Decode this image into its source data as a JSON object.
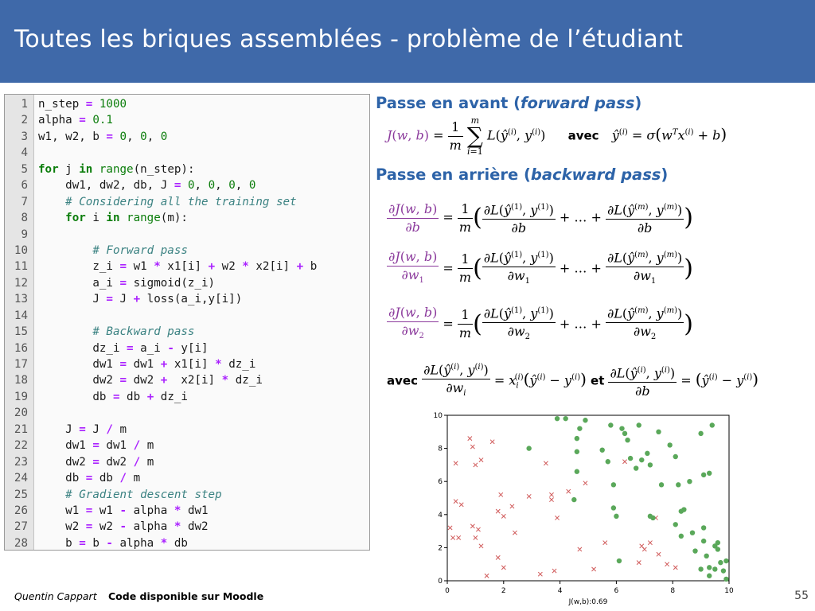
{
  "title": "Toutes les briques assemblées - problème de l’étudiant",
  "code": [
    {
      "n": "1",
      "html": "n_step <span class='op'>=</span> <span class='num'>1000</span>"
    },
    {
      "n": "2",
      "html": "alpha <span class='op'>=</span> <span class='num'>0.1</span>"
    },
    {
      "n": "3",
      "html": "w1, w2, b <span class='op'>=</span> <span class='num'>0</span>, <span class='num'>0</span>, <span class='num'>0</span>"
    },
    {
      "n": "4",
      "html": ""
    },
    {
      "n": "5",
      "html": "<span class='kw'>for</span> j <span class='kw'>in</span> <span class='bi'>range</span>(n_step):"
    },
    {
      "n": "6",
      "html": "    dw1, dw2, db, J <span class='op'>=</span> <span class='num'>0</span>, <span class='num'>0</span>, <span class='num'>0</span>, <span class='num'>0</span>"
    },
    {
      "n": "7",
      "html": "    <span class='cm'># Considering all the training set</span>"
    },
    {
      "n": "8",
      "html": "    <span class='kw'>for</span> i <span class='kw'>in</span> <span class='bi'>range</span>(m):"
    },
    {
      "n": "9",
      "html": ""
    },
    {
      "n": "10",
      "html": "        <span class='cm'># Forward pass</span>"
    },
    {
      "n": "11",
      "html": "        z_i <span class='op'>=</span> w1 <span class='op'>*</span> x1[i] <span class='op'>+</span> w2 <span class='op'>*</span> x2[i] <span class='op'>+</span> b"
    },
    {
      "n": "12",
      "html": "        a_i <span class='op'>=</span> sigmoid(z_i)"
    },
    {
      "n": "13",
      "html": "        J <span class='op'>=</span> J <span class='op'>+</span> loss(a_i,y[i])"
    },
    {
      "n": "14",
      "html": ""
    },
    {
      "n": "15",
      "html": "        <span class='cm'># Backward pass</span>"
    },
    {
      "n": "16",
      "html": "        dz_i <span class='op'>=</span> a_i <span class='op'>-</span> y[i]"
    },
    {
      "n": "17",
      "html": "        dw1 <span class='op'>=</span> dw1 <span class='op'>+</span> x1[i] <span class='op'>*</span> dz_i"
    },
    {
      "n": "18",
      "html": "        dw2 <span class='op'>=</span> dw2 <span class='op'>+</span>  x2[i] <span class='op'>*</span> dz_i"
    },
    {
      "n": "19",
      "html": "        db <span class='op'>=</span> db <span class='op'>+</span> dz_i"
    },
    {
      "n": "20",
      "html": ""
    },
    {
      "n": "21",
      "html": "    J <span class='op'>=</span> J <span class='op'>/</span> m"
    },
    {
      "n": "22",
      "html": "    dw1 <span class='op'>=</span> dw1 <span class='op'>/</span> m"
    },
    {
      "n": "23",
      "html": "    dw2 <span class='op'>=</span> dw2 <span class='op'>/</span> m"
    },
    {
      "n": "24",
      "html": "    db <span class='op'>=</span> db <span class='op'>/</span> m"
    },
    {
      "n": "25",
      "html": "    <span class='cm'># Gradient descent step</span>"
    },
    {
      "n": "26",
      "html": "    w1 <span class='op'>=</span> w1 <span class='op'>-</span> alpha <span class='op'>*</span> dw1"
    },
    {
      "n": "27",
      "html": "    w2 <span class='op'>=</span> w2 <span class='op'>-</span> alpha <span class='op'>*</span> dw2"
    },
    {
      "n": "28",
      "html": "    b <span class='op'>=</span> b <span class='op'>-</span> alpha <span class='op'>*</span> db"
    }
  ],
  "forward": {
    "title_plain": "Passe en avant (",
    "title_em": "forward pass",
    "title_close": ")",
    "avec": "avec"
  },
  "backward": {
    "title_plain": "Passe en arrière (",
    "title_em": "backward pass",
    "title_close": ")"
  },
  "avec_label": "avec",
  "et_label": "et",
  "chart_data": {
    "type": "scatter",
    "xlim": [
      0,
      10
    ],
    "ylim": [
      0,
      10
    ],
    "xticks": [
      "0",
      "2",
      "4",
      "6",
      "8",
      "10"
    ],
    "yticks": [
      "0",
      "2",
      "4",
      "6",
      "8",
      "10"
    ],
    "xlabel": "J(w,b):0.69",
    "series": [
      {
        "marker": "x",
        "color": "#d05a5a",
        "points": [
          [
            0.1,
            3.2
          ],
          [
            0.2,
            2.6
          ],
          [
            0.3,
            7.1
          ],
          [
            0.3,
            4.8
          ],
          [
            0.4,
            2.6
          ],
          [
            0.5,
            4.6
          ],
          [
            0.8,
            8.6
          ],
          [
            0.9,
            8.1
          ],
          [
            0.9,
            3.3
          ],
          [
            1.0,
            2.6
          ],
          [
            1.0,
            7.0
          ],
          [
            1.1,
            3.1
          ],
          [
            1.2,
            7.3
          ],
          [
            1.2,
            2.1
          ],
          [
            1.4,
            0.3
          ],
          [
            1.6,
            8.4
          ],
          [
            1.8,
            4.2
          ],
          [
            1.8,
            1.4
          ],
          [
            1.9,
            5.2
          ],
          [
            2.0,
            3.9
          ],
          [
            2.0,
            0.8
          ],
          [
            2.3,
            4.5
          ],
          [
            2.4,
            2.9
          ],
          [
            2.9,
            5.1
          ],
          [
            3.3,
            0.4
          ],
          [
            3.5,
            7.1
          ],
          [
            3.7,
            5.2
          ],
          [
            3.7,
            4.9
          ],
          [
            3.8,
            0.6
          ],
          [
            3.9,
            3.8
          ],
          [
            4.3,
            5.4
          ],
          [
            4.7,
            1.9
          ],
          [
            4.9,
            5.9
          ],
          [
            5.2,
            0.7
          ],
          [
            5.6,
            2.3
          ],
          [
            6.3,
            7.2
          ],
          [
            6.8,
            1.1
          ],
          [
            6.9,
            2.1
          ],
          [
            7.0,
            1.9
          ],
          [
            7.2,
            2.3
          ],
          [
            7.4,
            3.8
          ],
          [
            7.5,
            1.6
          ],
          [
            7.8,
            1.0
          ],
          [
            8.1,
            0.8
          ]
        ]
      },
      {
        "marker": "o",
        "color": "#5aa85a",
        "points": [
          [
            2.9,
            8.0
          ],
          [
            3.9,
            9.8
          ],
          [
            4.2,
            9.8
          ],
          [
            4.6,
            8.6
          ],
          [
            4.6,
            7.8
          ],
          [
            4.7,
            9.2
          ],
          [
            4.9,
            9.7
          ],
          [
            4.6,
            6.6
          ],
          [
            4.5,
            4.9
          ],
          [
            5.5,
            7.9
          ],
          [
            5.7,
            7.2
          ],
          [
            5.8,
            9.4
          ],
          [
            5.9,
            5.8
          ],
          [
            5.9,
            4.4
          ],
          [
            6.0,
            3.9
          ],
          [
            6.1,
            1.2
          ],
          [
            6.2,
            9.2
          ],
          [
            6.3,
            8.9
          ],
          [
            6.4,
            8.5
          ],
          [
            6.5,
            7.4
          ],
          [
            6.7,
            6.8
          ],
          [
            6.9,
            7.3
          ],
          [
            6.8,
            9.4
          ],
          [
            7.1,
            7.7
          ],
          [
            7.2,
            7.0
          ],
          [
            7.2,
            3.9
          ],
          [
            7.3,
            3.8
          ],
          [
            7.5,
            9.0
          ],
          [
            7.6,
            5.8
          ],
          [
            7.9,
            8.2
          ],
          [
            8.1,
            7.5
          ],
          [
            8.1,
            3.4
          ],
          [
            8.2,
            5.8
          ],
          [
            8.3,
            4.2
          ],
          [
            8.3,
            2.7
          ],
          [
            8.4,
            4.3
          ],
          [
            8.6,
            6.0
          ],
          [
            8.8,
            1.8
          ],
          [
            8.7,
            2.9
          ],
          [
            9.0,
            8.9
          ],
          [
            9.1,
            6.4
          ],
          [
            9.3,
            6.5
          ],
          [
            9.4,
            9.4
          ],
          [
            9.1,
            3.2
          ],
          [
            9.1,
            2.4
          ],
          [
            9.2,
            1.5
          ],
          [
            9.5,
            2.1
          ],
          [
            9.6,
            1.9
          ],
          [
            9.7,
            1.1
          ],
          [
            9.3,
            0.8
          ],
          [
            9.5,
            0.7
          ],
          [
            9.6,
            2.3
          ],
          [
            9.8,
            0.6
          ],
          [
            9.9,
            1.2
          ],
          [
            9.9,
            0.1
          ],
          [
            9.3,
            0.3
          ],
          [
            9.0,
            0.7
          ]
        ]
      }
    ]
  },
  "footer": {
    "author": "Quentin Cappart",
    "note": "Code disponible sur Moodle",
    "page": "55"
  }
}
